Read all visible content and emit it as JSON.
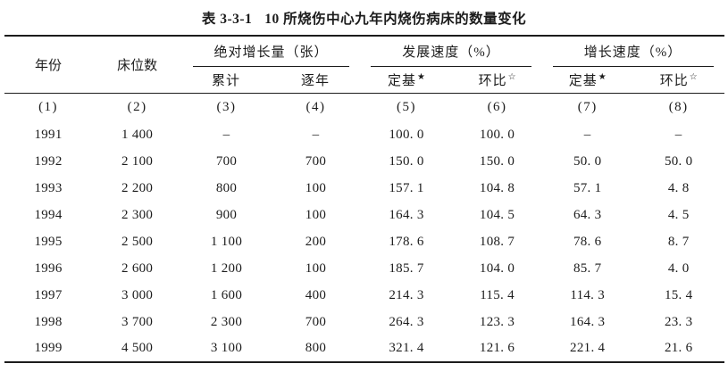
{
  "title": {
    "tag": "表 3-3-1",
    "text": "10 所烧伤中心九年内烧伤病床的数量变化"
  },
  "colors": {
    "background": "#ffffff",
    "text": "#1c1c1c",
    "rule": "#1c1c1c"
  },
  "table": {
    "header": {
      "year": "年份",
      "beds": "床位数",
      "groups": [
        {
          "label": "绝对增长量（张）",
          "sub": [
            {
              "label": "累计",
              "star": ""
            },
            {
              "label": "逐年",
              "star": ""
            }
          ]
        },
        {
          "label": "发展速度（%）",
          "sub": [
            {
              "label": "定基",
              "star": "★"
            },
            {
              "label": "环比",
              "star": "☆"
            }
          ]
        },
        {
          "label": "增长速度（%）",
          "sub": [
            {
              "label": "定基",
              "star": "★"
            },
            {
              "label": "环比",
              "star": "☆"
            }
          ]
        }
      ],
      "col_numbers": [
        "(1)",
        "(2)",
        "(3)",
        "(4)",
        "(5)",
        "(6)",
        "(7)",
        "(8)"
      ]
    },
    "rows": [
      [
        "1991",
        "1 400",
        "–",
        "–",
        "100. 0",
        "100. 0",
        "–",
        "–"
      ],
      [
        "1992",
        "2 100",
        "700",
        "700",
        "150. 0",
        "150. 0",
        "50. 0",
        "50. 0"
      ],
      [
        "1993",
        "2 200",
        "800",
        "100",
        "157. 1",
        "104. 8",
        "57. 1",
        "4. 8"
      ],
      [
        "1994",
        "2 300",
        "900",
        "100",
        "164. 3",
        "104. 5",
        "64. 3",
        "4. 5"
      ],
      [
        "1995",
        "2 500",
        "1 100",
        "200",
        "178. 6",
        "108. 7",
        "78. 6",
        "8. 7"
      ],
      [
        "1996",
        "2 600",
        "1 200",
        "100",
        "185. 7",
        "104. 0",
        "85. 7",
        "4. 0"
      ],
      [
        "1997",
        "3 000",
        "1 600",
        "400",
        "214. 3",
        "115. 4",
        "114. 3",
        "15. 4"
      ],
      [
        "1998",
        "3 700",
        "2 300",
        "700",
        "264. 3",
        "123. 3",
        "164. 3",
        "23. 3"
      ],
      [
        "1999",
        "4 500",
        "3 100",
        "800",
        "321. 4",
        "121. 6",
        "221. 4",
        "21. 6"
      ]
    ]
  }
}
